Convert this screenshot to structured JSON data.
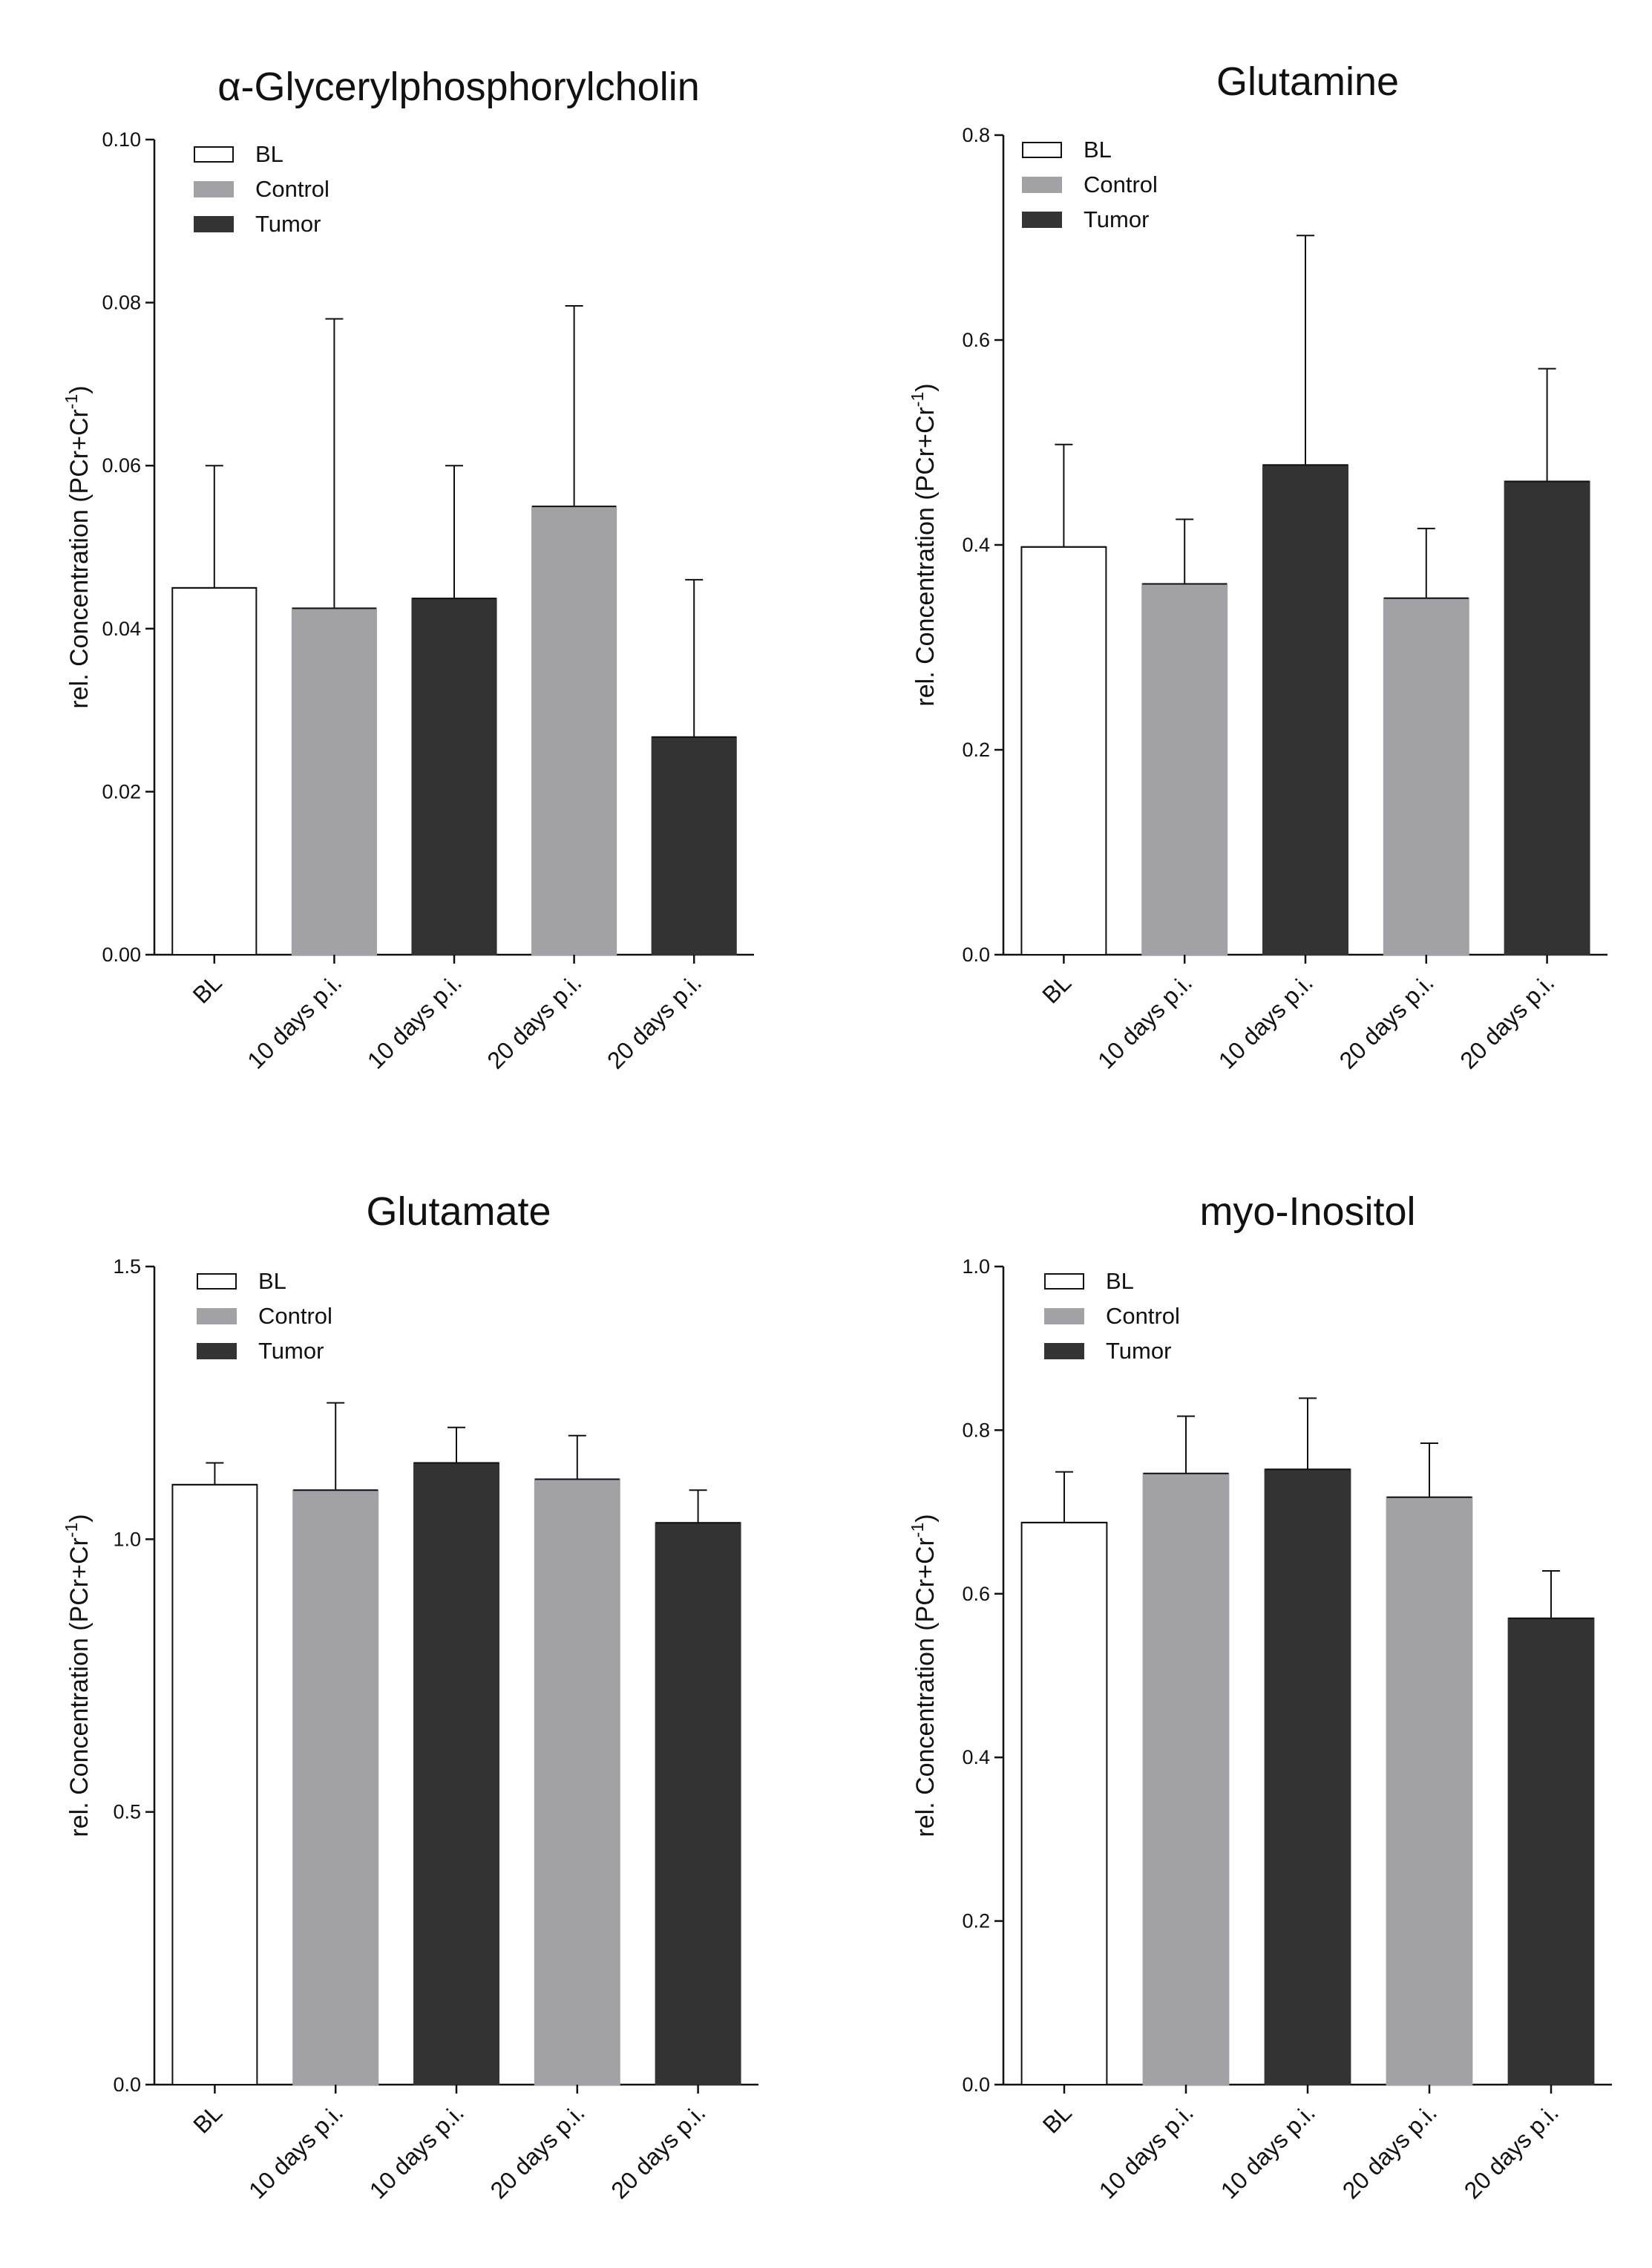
{
  "figure": {
    "legend_labels": [
      "BL",
      "Control",
      "Tumor"
    ]
  },
  "colors": {
    "BL": "#ffffff",
    "Control": "#a2a2a6",
    "Tumor": "#333333",
    "axis": "#111111"
  },
  "chart_data": [
    {
      "type": "bar",
      "title": "α-Glycerylphosphorylcholin",
      "ylabel_main": "rel. Concentration (PCr+Cr",
      "ylabel_sup": "-1",
      "ylabel_end": ")",
      "ylim": [
        0,
        0.1
      ],
      "yticks": [
        "0.00",
        "0.02",
        "0.04",
        "0.06",
        "0.08",
        "0.10"
      ],
      "categories": [
        "BL",
        "10 days p.i.",
        "10 days p.i.",
        "20 days p.i.",
        "20 days p.i."
      ],
      "groups": [
        "BL",
        "Control",
        "Tumor",
        "Control",
        "Tumor"
      ],
      "values": [
        0.045,
        0.0425,
        0.0437,
        0.055,
        0.0267
      ],
      "errors": [
        0.015,
        0.0355,
        0.0163,
        0.0246,
        0.0193
      ],
      "legend": [
        "BL",
        "Control",
        "Tumor"
      ],
      "legend_position": "top-left"
    },
    {
      "type": "bar",
      "title": "Glutamine",
      "ylabel_main": "rel. Concentration (PCr+Cr",
      "ylabel_sup": "-1",
      "ylabel_end": ")",
      "ylim": [
        0,
        0.8
      ],
      "yticks": [
        "0.0",
        "0.2",
        "0.4",
        "0.6",
        "0.8"
      ],
      "categories": [
        "BL",
        "10 days p.i.",
        "10 days p.i.",
        "20 days p.i.",
        "20 days p.i."
      ],
      "groups": [
        "BL",
        "Control",
        "Tumor",
        "Control",
        "Tumor"
      ],
      "values": [
        0.398,
        0.362,
        0.478,
        0.348,
        0.462
      ],
      "errors": [
        0.1,
        0.063,
        0.224,
        0.068,
        0.11
      ],
      "legend": [
        "BL",
        "Control",
        "Tumor"
      ],
      "legend_position": "top-left"
    },
    {
      "type": "bar",
      "title": "Glutamate",
      "ylabel_main": "rel. Concentration (PCr+Cr",
      "ylabel_sup": "-1",
      "ylabel_end": ")",
      "ylim": [
        0,
        1.5
      ],
      "yticks": [
        "0.0",
        "0.5",
        "1.0",
        "1.5"
      ],
      "categories": [
        "BL",
        "10 days p.i.",
        "10 days p.i.",
        "20 days p.i.",
        "20 days p.i."
      ],
      "groups": [
        "BL",
        "Control",
        "Tumor",
        "Control",
        "Tumor"
      ],
      "values": [
        1.1,
        1.09,
        1.14,
        1.11,
        1.03
      ],
      "errors": [
        0.04,
        0.16,
        0.065,
        0.08,
        0.06
      ],
      "legend": [
        "BL",
        "Control",
        "Tumor"
      ],
      "legend_position": "top-left"
    },
    {
      "type": "bar",
      "title": "myo-Inositol",
      "ylabel_main": "rel. Concentration (PCr+Cr",
      "ylabel_sup": "-1",
      "ylabel_end": ")",
      "ylim": [
        0,
        1.0
      ],
      "yticks": [
        "0.0",
        "0.2",
        "0.4",
        "0.6",
        "0.8",
        "1.0"
      ],
      "categories": [
        "BL",
        "10 days p.i.",
        "10 days p.i.",
        "20 days p.i.",
        "20 days p.i."
      ],
      "groups": [
        "BL",
        "Control",
        "Tumor",
        "Control",
        "Tumor"
      ],
      "values": [
        0.687,
        0.747,
        0.752,
        0.718,
        0.57
      ],
      "errors": [
        0.062,
        0.07,
        0.087,
        0.066,
        0.058
      ],
      "legend": [
        "BL",
        "Control",
        "Tumor"
      ],
      "legend_position": "top-left"
    }
  ]
}
